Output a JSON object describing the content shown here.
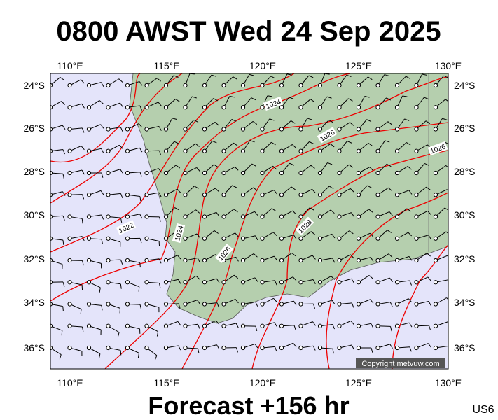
{
  "title": "0800 AWST Wed 24 Sep 2025",
  "map": {
    "lon_labels_top": [
      "110°E",
      "115°E",
      "120°E",
      "125°E",
      "130°E"
    ],
    "lon_labels_bottom": [
      "110°E",
      "115°E",
      "120°E",
      "125°E",
      "130°E"
    ],
    "lat_labels_left": [
      "24°S",
      "26°S",
      "28°S",
      "30°S",
      "32°S",
      "34°S",
      "36°S"
    ],
    "lat_labels_right": [
      "24°S",
      "26°S",
      "28°S",
      "30°S",
      "32°S",
      "34°S",
      "36°S"
    ],
    "isobar_labels": [
      1024,
      1026,
      1026,
      1022,
      1024,
      1026,
      1028
    ],
    "copyright": "Copyright metvuw.com"
  },
  "footer": "Forecast +156 hr",
  "code": "US6"
}
